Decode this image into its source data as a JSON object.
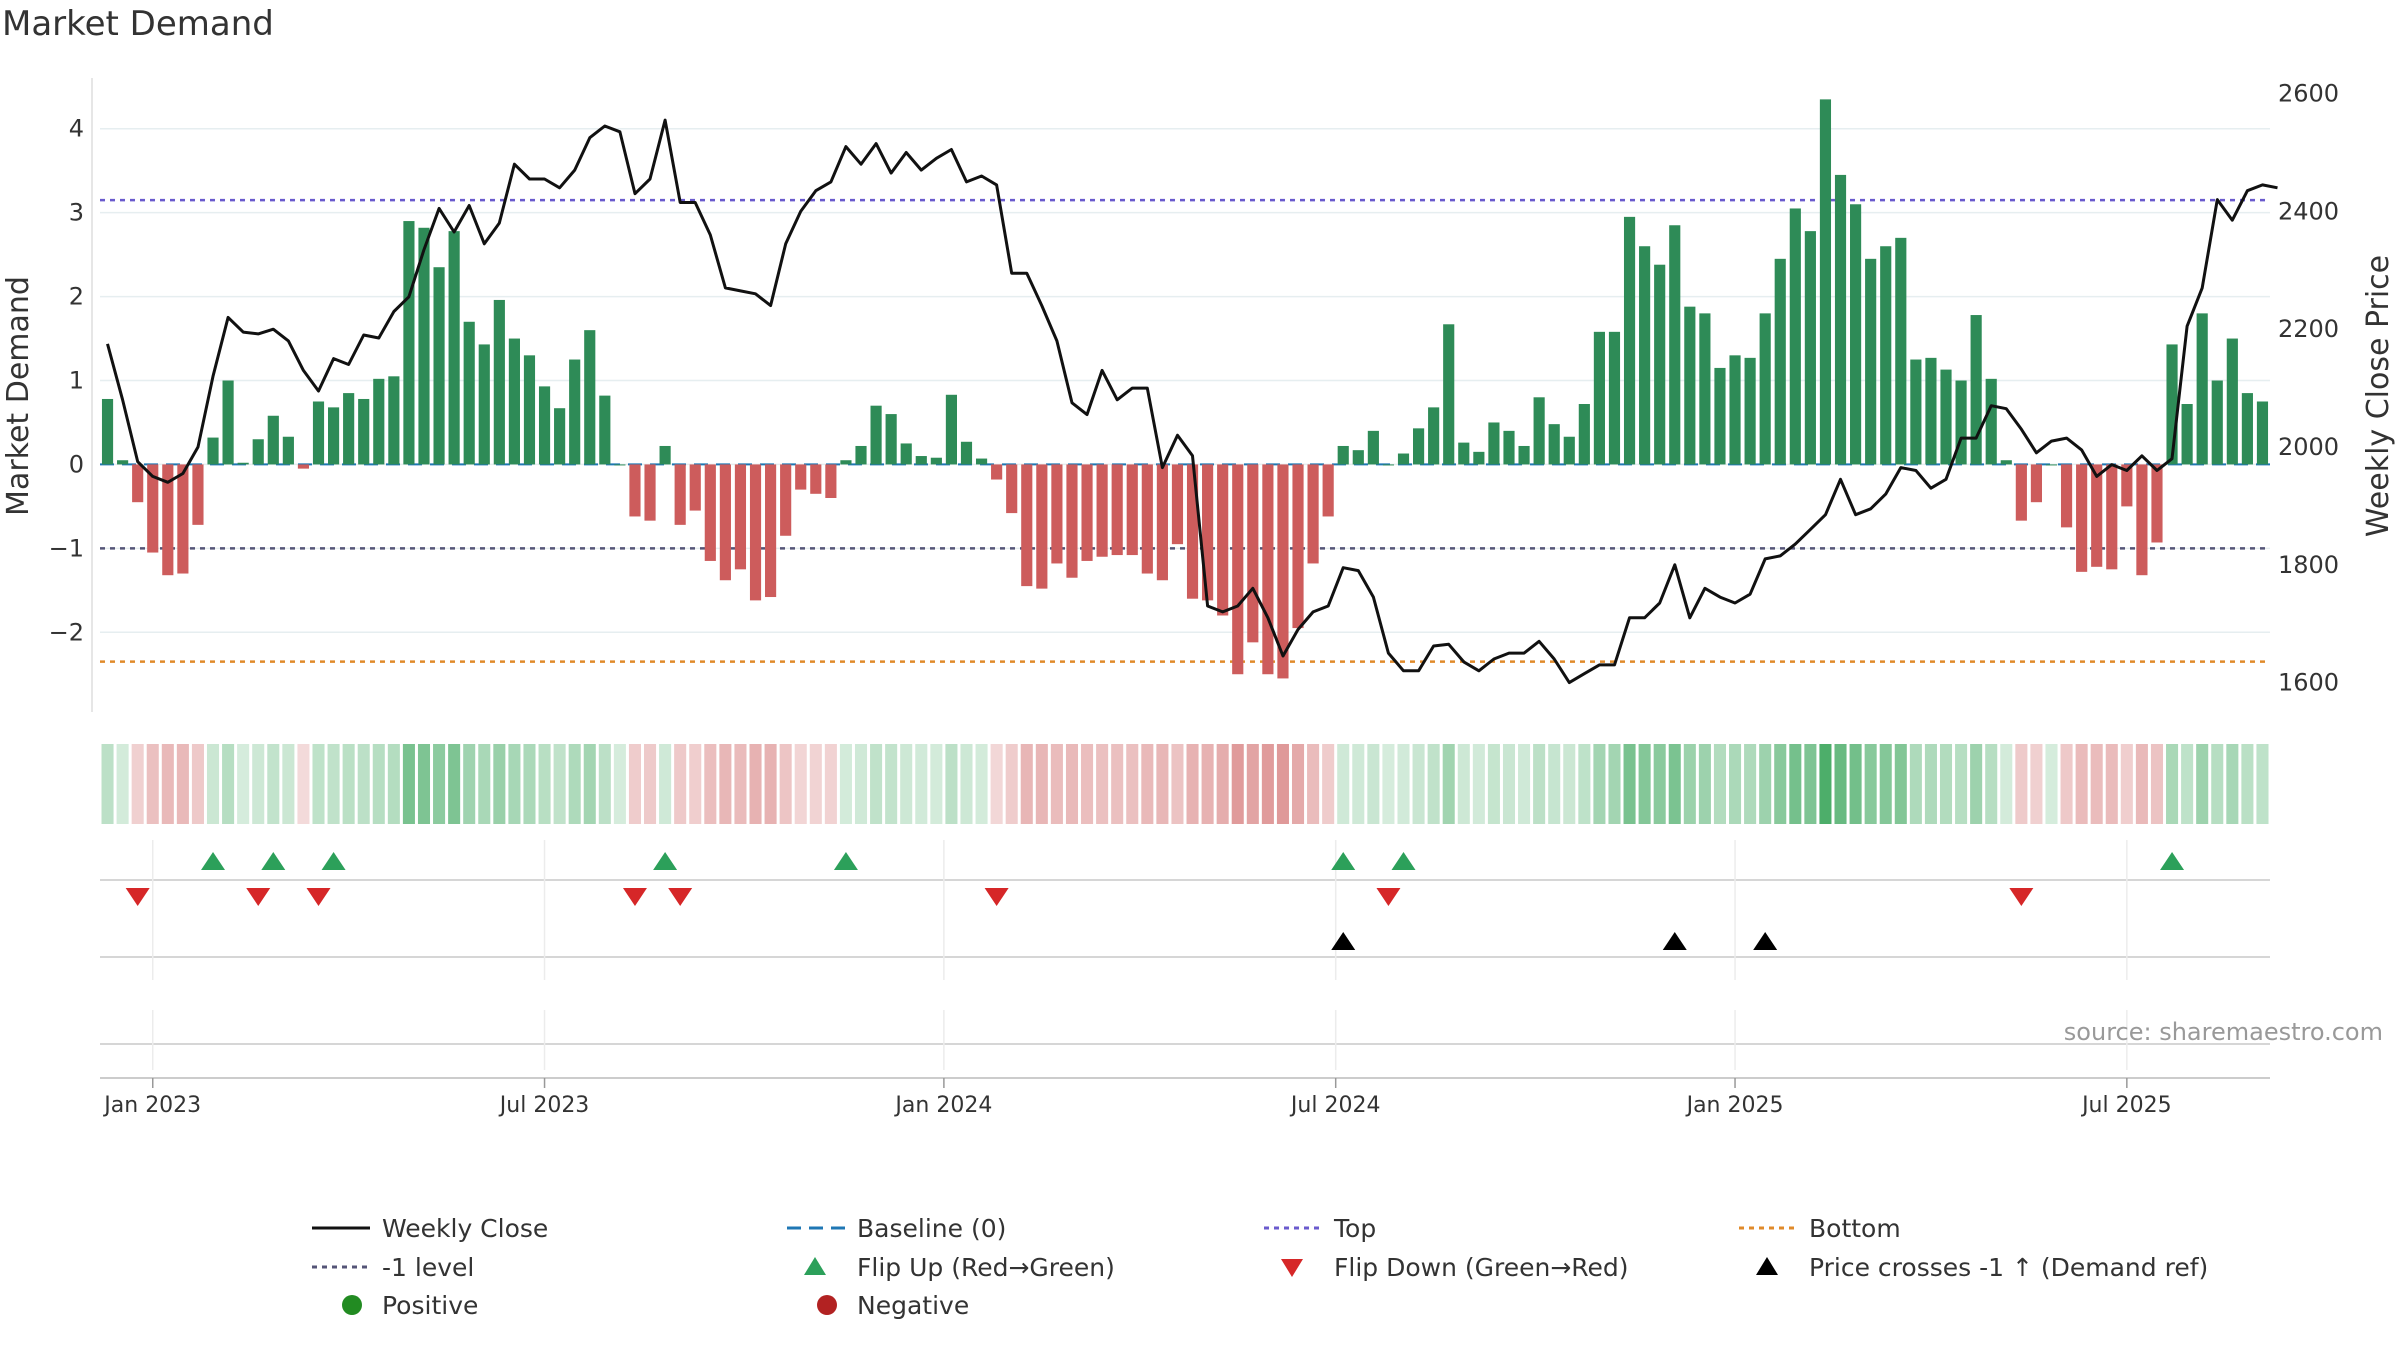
{
  "chart_data": {
    "type": "bar",
    "title": "Market Demand",
    "ylabel": "Market Demand",
    "y2label": "Weekly Close Price",
    "ylim": [
      -2.95,
      4.7
    ],
    "y2lim": [
      1550,
      2640
    ],
    "yticks": [
      4,
      3,
      2,
      1,
      0,
      -1,
      -2
    ],
    "ytick_labels": [
      "4",
      "3",
      "2",
      "1",
      "0",
      "−1",
      "−2"
    ],
    "y2ticks": [
      2600,
      2400,
      2200,
      2000,
      1800,
      1600
    ],
    "y2tick_labels": [
      "2600",
      "2400",
      "2200",
      "2000",
      "1800",
      "1600"
    ],
    "levels": {
      "top": 3.15,
      "minus_one": -1,
      "bottom": -2.35
    },
    "x_ticks": [
      {
        "label": "Jan 2023",
        "week": 3
      },
      {
        "label": "Jul 2023",
        "week": 29
      },
      {
        "label": "Jan 2024",
        "week": 55.5
      },
      {
        "label": "Jul 2024",
        "week": 81.5
      },
      {
        "label": "Jan 2025",
        "week": 108
      },
      {
        "label": "Jul 2025",
        "week": 134
      }
    ],
    "demand": [
      0.78,
      0.05,
      -0.45,
      -1.05,
      -1.32,
      -1.3,
      -0.72,
      0.32,
      1.0,
      0.02,
      0.3,
      0.58,
      0.33,
      -0.05,
      0.75,
      0.68,
      0.85,
      0.78,
      1.02,
      1.05,
      2.9,
      2.82,
      2.35,
      2.78,
      1.7,
      1.43,
      1.96,
      1.5,
      1.3,
      0.93,
      0.67,
      1.25,
      1.6,
      0.82,
      0.0,
      -0.62,
      -0.67,
      0.22,
      -0.72,
      -0.55,
      -1.15,
      -1.38,
      -1.25,
      -1.62,
      -1.58,
      -0.85,
      -0.3,
      -0.35,
      -0.4,
      0.05,
      0.22,
      0.7,
      0.6,
      0.25,
      0.1,
      0.08,
      0.83,
      0.27,
      0.07,
      -0.18,
      -0.58,
      -1.45,
      -1.48,
      -1.18,
      -1.35,
      -1.15,
      -1.1,
      -1.08,
      -1.08,
      -1.3,
      -1.38,
      -0.95,
      -1.6,
      -1.62,
      -1.8,
      -2.5,
      -2.12,
      -2.5,
      -2.55,
      -1.95,
      -1.18,
      -0.62,
      0.22,
      0.17,
      0.4,
      0.0,
      0.13,
      0.43,
      0.68,
      1.67,
      0.26,
      0.15,
      0.5,
      0.4,
      0.22,
      0.8,
      0.48,
      0.33,
      0.72,
      1.58,
      1.58,
      2.95,
      2.6,
      2.38,
      2.85,
      1.88,
      1.8,
      1.15,
      1.3,
      1.27,
      1.8,
      2.45,
      3.05,
      2.78,
      4.35,
      3.45,
      3.1,
      2.45,
      2.6,
      2.7,
      1.25,
      1.27,
      1.13,
      1.0,
      1.78,
      1.02,
      0.05,
      -0.67,
      -0.45,
      0.0,
      -0.75,
      -1.28,
      -1.22,
      -1.25,
      -0.5,
      -1.32,
      -0.93,
      1.43,
      0.72,
      1.8,
      1.0,
      1.5,
      0.85,
      0.75
    ],
    "close": [
      2175,
      2080,
      1975,
      1950,
      1940,
      1955,
      2000,
      2120,
      2220,
      2195,
      2192,
      2200,
      2180,
      2130,
      2095,
      2150,
      2140,
      2190,
      2185,
      2230,
      2255,
      2335,
      2405,
      2365,
      2410,
      2345,
      2380,
      2480,
      2455,
      2455,
      2440,
      2470,
      2525,
      2545,
      2535,
      2430,
      2455,
      2555,
      2415,
      2415,
      2360,
      2270,
      2265,
      2260,
      2240,
      2345,
      2400,
      2435,
      2450,
      2510,
      2480,
      2515,
      2465,
      2500,
      2470,
      2490,
      2505,
      2450,
      2460,
      2445,
      2295,
      2295,
      2240,
      2180,
      2075,
      2055,
      2130,
      2080,
      2100,
      2100,
      1965,
      2020,
      1985,
      1730,
      1720,
      1730,
      1760,
      1710,
      1645,
      1690,
      1720,
      1730,
      1795,
      1790,
      1745,
      1650,
      1620,
      1620,
      1662,
      1665,
      1635,
      1620,
      1640,
      1650,
      1650,
      1670,
      1640,
      1600,
      1615,
      1630,
      1630,
      1710,
      1710,
      1735,
      1800,
      1710,
      1760,
      1745,
      1735,
      1750,
      1810,
      1815,
      1835,
      1860,
      1885,
      1945,
      1885,
      1895,
      1920,
      1965,
      1960,
      1930,
      1945,
      2015,
      2015,
      2070,
      2065,
      2030,
      1990,
      2010,
      2015,
      1995,
      1950,
      1970,
      1960,
      1985,
      1960,
      1980,
      2205,
      2270,
      2420,
      2385,
      2435,
      2445,
      2440
    ],
    "flip_up_weeks": [
      7,
      11,
      15,
      37,
      49,
      82,
      86,
      137
    ],
    "flip_down_weeks": [
      2,
      10,
      14,
      35,
      38,
      59,
      85,
      127
    ],
    "cross_weeks": [
      82,
      104,
      110
    ],
    "legend": [
      [
        "Weekly Close",
        "Baseline (0)",
        "Top",
        "Bottom"
      ],
      [
        "-1 level",
        "Flip Up (Red→Green)",
        "Flip Down (Green→Red)",
        "Price crosses -1 ↑ (Demand ref)"
      ],
      [
        "Positive",
        "Negative"
      ]
    ],
    "source": "source: sharemaestro.com"
  },
  "colors": {
    "positive": "#2e8b57",
    "negative": "#cd5c5c",
    "close_line": "#111111",
    "baseline": "#1f77b4",
    "top": "#6a5acd",
    "minus_one": "#555577",
    "bottom": "#e08a2a",
    "flip_up": "#2ca05a",
    "flip_down": "#d62728",
    "cross": "#000000",
    "legend_positive": "#228b22",
    "legend_negative": "#b22222"
  }
}
